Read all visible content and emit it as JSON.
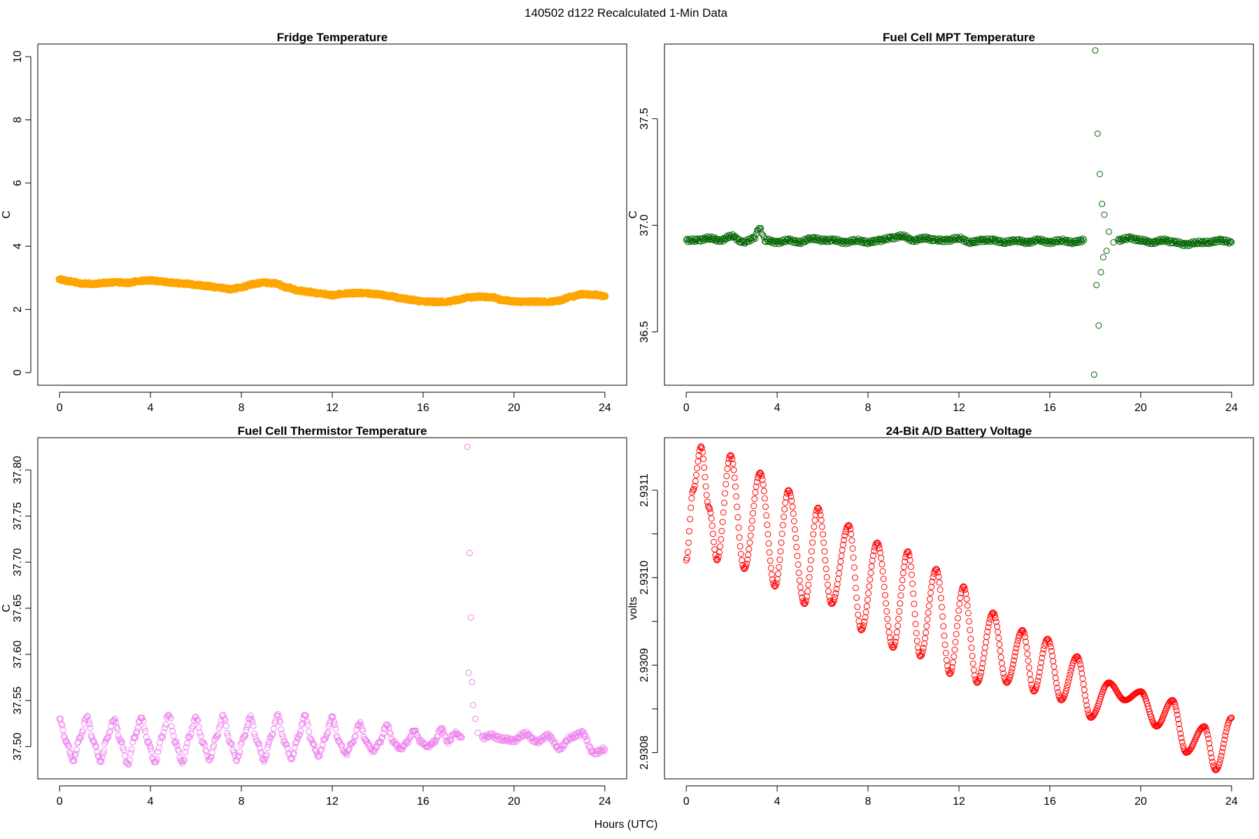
{
  "figure": {
    "title": "140502   d122   Recalculated 1-Min Data",
    "xlabel": "Hours (UTC)"
  },
  "chart_data": [
    {
      "id": "fridge",
      "type": "scatter",
      "title": "Fridge Temperature",
      "xlabel": "",
      "ylabel": "C",
      "color": "#FFA500",
      "filled": true,
      "xlim": [
        0,
        24
      ],
      "ylim": [
        -0.4,
        10.4
      ],
      "xticks": [
        0,
        4,
        8,
        12,
        16,
        20,
        24
      ],
      "yticks": [
        0,
        2,
        4,
        6,
        8,
        10
      ],
      "series": [
        {
          "name": "Fridge Temperature",
          "x": [
            0,
            0.5,
            1,
            1.5,
            2,
            2.5,
            3,
            3.5,
            4,
            4.5,
            5,
            5.5,
            6,
            6.5,
            7,
            7.5,
            8,
            8.5,
            9,
            9.5,
            10,
            10.5,
            11,
            11.5,
            12,
            12.5,
            13,
            13.5,
            14,
            14.5,
            15,
            15.5,
            16,
            16.5,
            17,
            17.5,
            18,
            18.5,
            19,
            19.5,
            20,
            20.5,
            21,
            21.5,
            22,
            22.5,
            23,
            23.5,
            24
          ],
          "y": [
            2.95,
            2.88,
            2.82,
            2.81,
            2.84,
            2.86,
            2.84,
            2.9,
            2.92,
            2.88,
            2.84,
            2.82,
            2.78,
            2.74,
            2.69,
            2.64,
            2.7,
            2.8,
            2.85,
            2.82,
            2.7,
            2.6,
            2.55,
            2.5,
            2.45,
            2.5,
            2.52,
            2.51,
            2.48,
            2.43,
            2.36,
            2.3,
            2.25,
            2.24,
            2.24,
            2.3,
            2.38,
            2.4,
            2.39,
            2.3,
            2.25,
            2.24,
            2.25,
            2.24,
            2.28,
            2.4,
            2.48,
            2.47,
            2.42
          ]
        }
      ]
    },
    {
      "id": "mpt",
      "type": "scatter",
      "title": "Fuel Cell MPT Temperature",
      "xlabel": "",
      "ylabel": "C",
      "color": "#006400",
      "filled": false,
      "xlim": [
        0,
        24
      ],
      "ylim": [
        36.25,
        37.85
      ],
      "xticks": [
        0,
        4,
        8,
        12,
        16,
        20,
        24
      ],
      "yticks": [
        36.5,
        37.0,
        37.5
      ],
      "ytick_labels": [
        "36.5",
        "37.0",
        "37.5"
      ],
      "series": [
        {
          "name": "Fuel Cell MPT Temperature",
          "x": [
            0,
            0.5,
            1,
            1.5,
            2,
            2.5,
            3,
            3.2,
            3.5,
            4,
            4.5,
            5,
            5.5,
            6,
            6.5,
            7,
            7.5,
            8,
            8.5,
            9,
            9.5,
            10,
            10.5,
            11,
            11.5,
            12,
            12.5,
            13,
            13.5,
            14,
            14.5,
            15,
            15.5,
            16,
            16.5,
            17,
            17.5,
            17.95,
            18.0,
            18.05,
            18.1,
            18.15,
            18.2,
            18.25,
            18.3,
            18.35,
            18.4,
            18.5,
            18.6,
            18.8,
            19,
            19.5,
            20,
            20.5,
            21,
            21.5,
            22,
            22.5,
            23,
            23.5,
            24
          ],
          "y": [
            36.93,
            36.93,
            36.94,
            36.93,
            36.95,
            36.92,
            36.94,
            36.99,
            36.93,
            36.92,
            36.93,
            36.92,
            36.94,
            36.93,
            36.93,
            36.92,
            36.93,
            36.92,
            36.93,
            36.94,
            36.95,
            36.93,
            36.94,
            36.93,
            36.93,
            36.94,
            36.92,
            36.93,
            36.93,
            36.92,
            36.93,
            36.92,
            36.93,
            36.92,
            36.93,
            36.92,
            36.93,
            36.3,
            37.82,
            36.72,
            37.43,
            36.53,
            37.24,
            36.78,
            37.1,
            36.85,
            37.05,
            36.88,
            36.97,
            36.92,
            36.93,
            36.94,
            36.93,
            36.92,
            36.93,
            36.92,
            36.91,
            36.92,
            36.92,
            36.93,
            36.92
          ]
        }
      ]
    },
    {
      "id": "thermistor",
      "type": "scatter",
      "title": "Fuel Cell Thermistor Temperature",
      "xlabel": "",
      "ylabel": "C",
      "color": "#EE82EE",
      "filled": false,
      "xlim": [
        0,
        24
      ],
      "ylim": [
        37.465,
        37.835
      ],
      "xticks": [
        0,
        4,
        8,
        12,
        16,
        20,
        24
      ],
      "yticks": [
        37.5,
        37.55,
        37.6,
        37.65,
        37.7,
        37.75,
        37.8
      ],
      "ytick_labels": [
        "37.50",
        "37.55",
        "37.60",
        "37.65",
        "37.70",
        "37.75",
        "37.80"
      ],
      "series": [
        {
          "name": "Fuel Cell Thermistor Temperature",
          "x": [
            0,
            0.3,
            0.6,
            0.9,
            1.2,
            1.5,
            1.8,
            2.1,
            2.4,
            2.7,
            3.0,
            3.3,
            3.6,
            3.9,
            4.2,
            4.5,
            4.8,
            5.1,
            5.4,
            5.7,
            6.0,
            6.3,
            6.6,
            6.9,
            7.2,
            7.5,
            7.8,
            8.1,
            8.4,
            8.7,
            9.0,
            9.3,
            9.6,
            9.9,
            10.2,
            10.5,
            10.8,
            11.1,
            11.4,
            11.7,
            12.0,
            12.3,
            12.6,
            12.9,
            13.2,
            13.5,
            13.8,
            14.1,
            14.4,
            14.7,
            15.0,
            15.3,
            15.6,
            15.9,
            16.2,
            16.5,
            16.8,
            17.1,
            17.4,
            17.7,
            17.95,
            18.0,
            18.05,
            18.1,
            18.15,
            18.2,
            18.3,
            18.4,
            18.6,
            19.0,
            19.5,
            20.0,
            20.5,
            21.0,
            21.5,
            22.0,
            22.5,
            23.0,
            23.5,
            24.0
          ],
          "y": [
            37.53,
            37.505,
            37.485,
            37.51,
            37.533,
            37.505,
            37.484,
            37.51,
            37.53,
            37.505,
            37.48,
            37.51,
            37.532,
            37.505,
            37.482,
            37.51,
            37.535,
            37.505,
            37.482,
            37.51,
            37.532,
            37.505,
            37.486,
            37.51,
            37.533,
            37.505,
            37.486,
            37.51,
            37.532,
            37.505,
            37.485,
            37.51,
            37.534,
            37.505,
            37.487,
            37.51,
            37.534,
            37.505,
            37.49,
            37.51,
            37.532,
            37.505,
            37.492,
            37.505,
            37.526,
            37.505,
            37.495,
            37.505,
            37.524,
            37.505,
            37.497,
            37.505,
            37.518,
            37.505,
            37.5,
            37.505,
            37.52,
            37.505,
            37.515,
            37.51,
            37.825,
            37.58,
            37.71,
            37.64,
            37.57,
            37.545,
            37.53,
            37.515,
            37.51,
            37.512,
            37.508,
            37.507,
            37.514,
            37.505,
            37.512,
            37.498,
            37.51,
            37.515,
            37.493,
            37.497
          ]
        }
      ]
    },
    {
      "id": "battery",
      "type": "scatter",
      "title": "24-Bit A/D Battery Voltage",
      "xlabel": "",
      "ylabel": "volts",
      "color": "#FF0000",
      "filled": false,
      "xlim": [
        0,
        24
      ],
      "ylim": [
        2.93077,
        2.93116
      ],
      "xticks": [
        0,
        4,
        8,
        12,
        16,
        20,
        24
      ],
      "yticks": [
        2.9308,
        2.93085,
        2.9309,
        2.93095,
        2.931,
        2.93105,
        2.9311
      ],
      "ytick_labels": [
        "2.9308",
        "",
        "2.9309",
        "",
        "2.9310",
        "",
        "2.9311"
      ],
      "series": [
        {
          "name": "24-Bit A/D Battery Voltage",
          "x": [
            0,
            0.3,
            0.65,
            1.0,
            1.35,
            1.95,
            2.55,
            3.25,
            3.9,
            4.5,
            5.2,
            5.8,
            6.4,
            7.15,
            7.7,
            8.4,
            9.1,
            9.75,
            10.3,
            11.0,
            11.6,
            12.2,
            12.8,
            13.5,
            14.1,
            14.8,
            15.3,
            15.9,
            16.5,
            17.2,
            17.8,
            18.6,
            19.3,
            20.0,
            20.7,
            21.4,
            22.0,
            22.8,
            23.3,
            24.0
          ],
          "y": [
            2.93102,
            2.9311,
            2.93115,
            2.93108,
            2.93102,
            2.93114,
            2.93101,
            2.93112,
            2.93099,
            2.9311,
            2.93097,
            2.93108,
            2.93097,
            2.93106,
            2.93094,
            2.93104,
            2.93092,
            2.93103,
            2.93091,
            2.93101,
            2.93089,
            2.93099,
            2.93088,
            2.93096,
            2.93088,
            2.93094,
            2.93087,
            2.93093,
            2.93086,
            2.93091,
            2.93084,
            2.93088,
            2.93086,
            2.93087,
            2.93083,
            2.93086,
            2.9308,
            2.93083,
            2.93078,
            2.93084
          ]
        }
      ]
    }
  ]
}
